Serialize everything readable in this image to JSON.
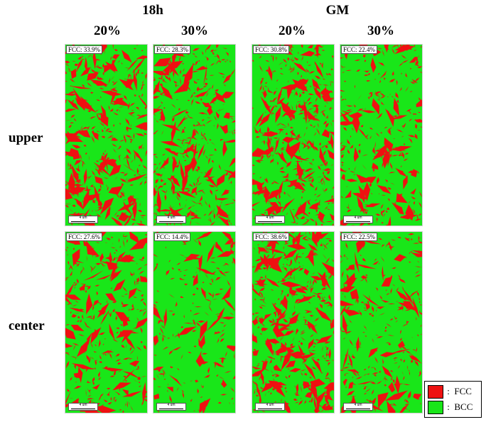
{
  "groups": [
    {
      "label": "18h"
    },
    {
      "label": "GM"
    }
  ],
  "columns": [
    {
      "label": "20%"
    },
    {
      "label": "30%"
    },
    {
      "label": "20%"
    },
    {
      "label": "30%"
    }
  ],
  "rows": [
    {
      "label": "upper"
    },
    {
      "label": "center"
    }
  ],
  "panels": [
    {
      "fcc": "FCC: 33.9%",
      "fcc_fraction": 0.339,
      "scale": "4 um"
    },
    {
      "fcc": "FCC: 28.3%",
      "fcc_fraction": 0.283,
      "scale": "4 um"
    },
    {
      "fcc": "FCC: 30.8%",
      "fcc_fraction": 0.308,
      "scale": "4 um"
    },
    {
      "fcc": "FCC: 22.4%",
      "fcc_fraction": 0.224,
      "scale": "4 um"
    },
    {
      "fcc": "FCC: 27.6%",
      "fcc_fraction": 0.276,
      "scale": "4 um"
    },
    {
      "fcc": "FCC: 14.4%",
      "fcc_fraction": 0.144,
      "scale": "4 um"
    },
    {
      "fcc": "FCC: 38.6%",
      "fcc_fraction": 0.386,
      "scale": "4 um"
    },
    {
      "fcc": "FCC: 22.5%",
      "fcc_fraction": 0.225,
      "scale": "4 um"
    }
  ],
  "legend": {
    "fcc": {
      "text": " :  FCC",
      "color": "#ee1111"
    },
    "bcc": {
      "text": " :  BCC",
      "color": "#19e619"
    }
  },
  "colors": {
    "fcc": "#ee1111",
    "bcc": "#19e619"
  }
}
